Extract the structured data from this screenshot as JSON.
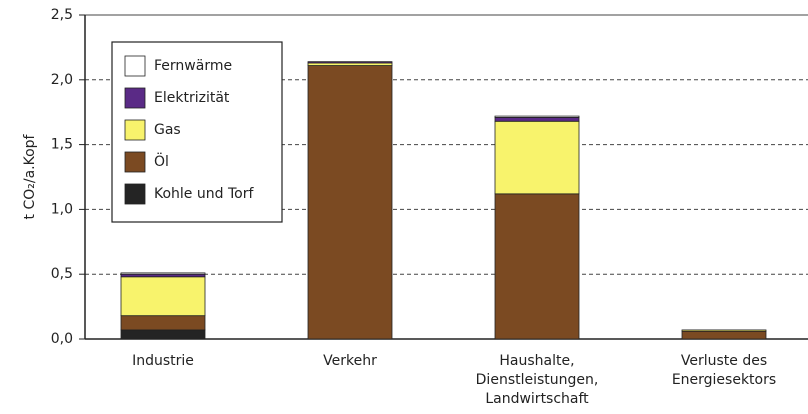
{
  "chart_data": {
    "type": "stacked_bar",
    "ylabel": "t CO₂/a.Kopf",
    "categories": [
      "Industrie",
      "Verkehr",
      "Haushalte,\nDienstleistungen,\nLandwirtschaft",
      "Verluste des\nEnergiesektors"
    ],
    "series": [
      {
        "name": "Kohle und Torf",
        "color": "#242424",
        "values": [
          0.07,
          0,
          0,
          0
        ]
      },
      {
        "name": "Öl",
        "color": "#7b4a22",
        "values": [
          0.11,
          2.11,
          1.12,
          0.06
        ]
      },
      {
        "name": "Gas",
        "color": "#f8f36c",
        "values": [
          0.3,
          0.02,
          0.56,
          0.01
        ]
      },
      {
        "name": "Elektrizität",
        "color": "#5a2a86",
        "values": [
          0.02,
          0.01,
          0.03,
          0
        ]
      },
      {
        "name": "Fernwärme",
        "color": "#ffffff",
        "values": [
          0.01,
          0,
          0.01,
          0
        ]
      }
    ],
    "ylim": [
      0,
      2.5
    ],
    "yticks": [
      {
        "value": 0,
        "label": "0,0"
      },
      {
        "value": 0.5,
        "label": "0,5"
      },
      {
        "value": 1,
        "label": "1,0"
      },
      {
        "value": 1.5,
        "label": "1,5"
      },
      {
        "value": 2,
        "label": "2,0"
      },
      {
        "value": 2.5,
        "label": "2,5"
      }
    ],
    "grid": true,
    "legend": "upper left"
  }
}
